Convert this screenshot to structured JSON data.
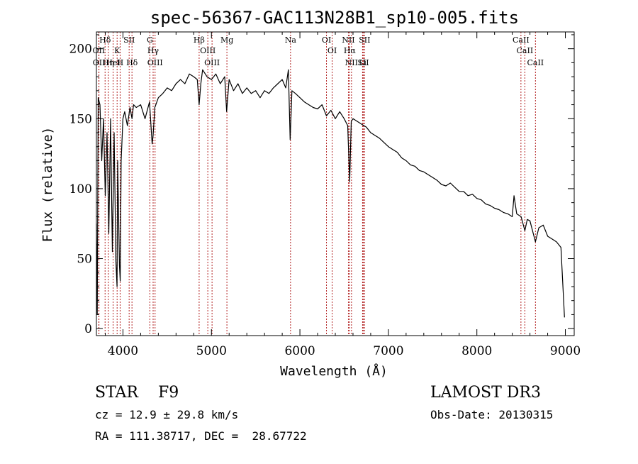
{
  "chart_data": {
    "type": "line",
    "title": "spec-56367-GAC113N28B1_sp10-005.fits",
    "xlabel": "Wavelength (Å)",
    "ylabel": "Flux (relative)",
    "xlim": [
      3700,
      9100
    ],
    "ylim": [
      -5,
      212
    ],
    "xticks": [
      4000,
      5000,
      6000,
      7000,
      8000,
      9000
    ],
    "yticks": [
      0,
      50,
      100,
      150,
      200
    ],
    "line_color": "#000000",
    "marker_color": "#b22222",
    "series": [
      {
        "name": "flux",
        "x": [
          3700,
          3710,
          3720,
          3740,
          3760,
          3780,
          3800,
          3820,
          3840,
          3860,
          3880,
          3900,
          3920,
          3933,
          3940,
          3960,
          3969,
          3980,
          4000,
          4020,
          4050,
          4080,
          4102,
          4120,
          4150,
          4200,
          4250,
          4300,
          4330,
          4341,
          4360,
          4400,
          4450,
          4500,
          4550,
          4600,
          4650,
          4700,
          4750,
          4800,
          4840,
          4861,
          4880,
          4900,
          4950,
          5000,
          5050,
          5100,
          5150,
          5172,
          5200,
          5250,
          5300,
          5350,
          5400,
          5450,
          5500,
          5550,
          5600,
          5650,
          5700,
          5750,
          5800,
          5840,
          5870,
          5890,
          5910,
          5950,
          6000,
          6050,
          6100,
          6150,
          6200,
          6250,
          6300,
          6350,
          6400,
          6450,
          6500,
          6540,
          6563,
          6580,
          6600,
          6650,
          6700,
          6750,
          6800,
          6850,
          6900,
          6950,
          7000,
          7050,
          7100,
          7150,
          7200,
          7250,
          7300,
          7350,
          7400,
          7450,
          7500,
          7550,
          7600,
          7650,
          7700,
          7750,
          7800,
          7850,
          7900,
          7950,
          8000,
          8050,
          8100,
          8150,
          8200,
          8250,
          8300,
          8350,
          8400,
          8420,
          8450,
          8500,
          8542,
          8570,
          8600,
          8662,
          8700,
          8750,
          8800,
          8850,
          8900,
          8950,
          8990
        ],
        "y": [
          75,
          10,
          165,
          160,
          120,
          150,
          95,
          140,
          68,
          150,
          55,
          140,
          48,
          30,
          120,
          45,
          34,
          120,
          150,
          155,
          145,
          158,
          150,
          160,
          158,
          160,
          150,
          162,
          132,
          138,
          158,
          165,
          168,
          172,
          170,
          175,
          178,
          175,
          182,
          180,
          178,
          160,
          175,
          185,
          180,
          178,
          182,
          175,
          180,
          155,
          178,
          170,
          175,
          168,
          172,
          168,
          170,
          165,
          170,
          168,
          172,
          175,
          178,
          172,
          185,
          135,
          170,
          168,
          165,
          162,
          160,
          158,
          157,
          160,
          152,
          156,
          150,
          155,
          150,
          145,
          105,
          148,
          150,
          148,
          146,
          144,
          140,
          138,
          136,
          133,
          130,
          128,
          126,
          122,
          120,
          117,
          116,
          113,
          112,
          110,
          108,
          106,
          103,
          102,
          104,
          101,
          98,
          98,
          95,
          96,
          93,
          92,
          89,
          88,
          86,
          85,
          83,
          82,
          80,
          95,
          82,
          80,
          70,
          78,
          77,
          62,
          72,
          74,
          66,
          64,
          62,
          58,
          8
        ]
      }
    ],
    "lines": [
      {
        "label": "Hδ",
        "wl": 3798
      },
      {
        "label": "OII",
        "wl": 3727
      },
      {
        "label": "OII",
        "wl": 3729
      },
      {
        "label": "Hη",
        "wl": 3835
      },
      {
        "label": "HeI",
        "wl": 3889
      },
      {
        "label": "K",
        "wl": 3934
      },
      {
        "label": "H",
        "wl": 3968
      },
      {
        "label": "SII",
        "wl": 4070
      },
      {
        "label": "Hδ",
        "wl": 4102
      },
      {
        "label": "G",
        "wl": 4304
      },
      {
        "label": "Hγ",
        "wl": 4341
      },
      {
        "label": "OIII",
        "wl": 4363
      },
      {
        "label": "Hβ",
        "wl": 4861
      },
      {
        "label": "OIII",
        "wl": 4959
      },
      {
        "label": "OIII",
        "wl": 5007
      },
      {
        "label": "Mg",
        "wl": 5175
      },
      {
        "label": "Na",
        "wl": 5894
      },
      {
        "label": "OI",
        "wl": 6300
      },
      {
        "label": "OI",
        "wl": 6364
      },
      {
        "label": "NII",
        "wl": 6548
      },
      {
        "label": "Hα",
        "wl": 6563
      },
      {
        "label": "NII",
        "wl": 6583
      },
      {
        "label": "Li",
        "wl": 6708
      },
      {
        "label": "SII",
        "wl": 6716
      },
      {
        "label": "SII",
        "wl": 6731
      },
      {
        "label": "CaII",
        "wl": 8498
      },
      {
        "label": "CaII",
        "wl": 8542
      },
      {
        "label": "CaII",
        "wl": 8662
      }
    ]
  },
  "info": {
    "class_line": "STAR    F9",
    "cz_line": "cz = 12.9 ± 29.8 km/s",
    "coord_line": "RA = 111.38717, DEC =  28.67722",
    "survey": "LAMOST DR3",
    "obs_date": "Obs-Date: 20130315"
  }
}
